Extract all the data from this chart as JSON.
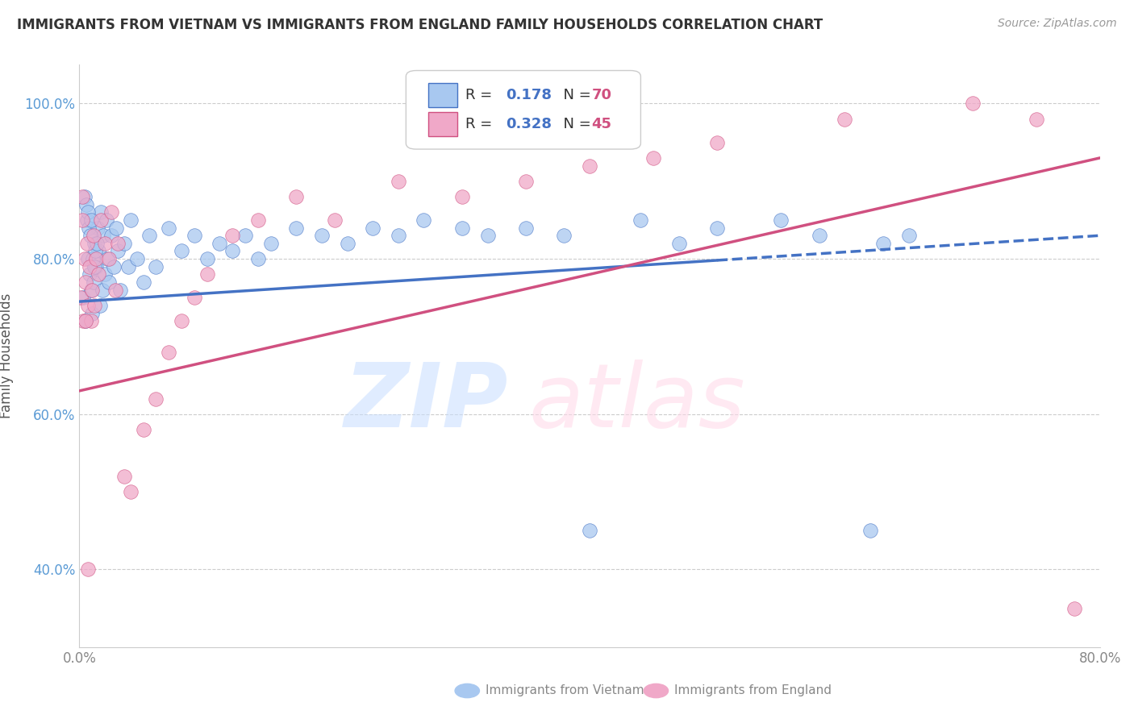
{
  "title": "IMMIGRANTS FROM VIETNAM VS IMMIGRANTS FROM ENGLAND FAMILY HOUSEHOLDS CORRELATION CHART",
  "source": "Source: ZipAtlas.com",
  "ylabel": "Family Households",
  "xlim": [
    0.0,
    80.0
  ],
  "ylim": [
    30.0,
    105.0
  ],
  "yticks": [
    40.0,
    60.0,
    80.0,
    100.0
  ],
  "ytick_labels": [
    "40.0%",
    "60.0%",
    "80.0%",
    "100.0%"
  ],
  "xticks": [
    0.0,
    10.0,
    20.0,
    30.0,
    40.0,
    50.0,
    60.0,
    70.0,
    80.0
  ],
  "xtick_labels": [
    "0.0%",
    "",
    "",
    "",
    "",
    "",
    "",
    "",
    "80.0%"
  ],
  "color_vietnam": "#A8C8F0",
  "color_england": "#F0A8C8",
  "color_line_vietnam": "#4472C4",
  "color_line_england": "#D05080",
  "color_r_value": "#4472C4",
  "color_n_value": "#D05080",
  "vn_line_x0": 0.0,
  "vn_line_y0": 74.5,
  "vn_line_x1": 80.0,
  "vn_line_y1": 83.0,
  "vn_solid_end": 50.0,
  "en_line_x0": 0.0,
  "en_line_y0": 63.0,
  "en_line_x1": 80.0,
  "en_line_y1": 93.0,
  "vietnam_x": [
    0.3,
    0.5,
    0.6,
    0.7,
    0.8,
    0.9,
    1.0,
    1.1,
    1.2,
    1.3,
    1.4,
    1.5,
    1.6,
    1.7,
    1.8,
    1.9,
    2.0,
    2.1,
    2.2,
    2.3,
    2.5,
    2.7,
    2.9,
    3.0,
    3.2,
    3.5,
    3.8,
    4.0,
    4.5,
    5.0,
    5.5,
    6.0,
    7.0,
    8.0,
    9.0,
    10.0,
    11.0,
    12.0,
    13.0,
    14.0,
    15.0,
    17.0,
    19.0,
    21.0,
    23.0,
    25.0,
    27.0,
    30.0,
    32.0,
    35.0,
    38.0,
    40.0,
    44.0,
    47.0,
    50.0,
    55.0,
    58.0,
    62.0,
    63.0,
    65.0,
    0.4,
    0.55,
    0.65,
    0.75,
    0.85,
    0.95,
    1.05,
    1.15,
    1.25,
    1.35
  ],
  "vietnam_y": [
    75.0,
    72.0,
    85.0,
    80.0,
    78.0,
    76.0,
    73.0,
    77.0,
    82.0,
    79.0,
    84.0,
    81.0,
    74.0,
    86.0,
    76.0,
    83.0,
    78.0,
    85.0,
    80.0,
    77.0,
    83.0,
    79.0,
    84.0,
    81.0,
    76.0,
    82.0,
    79.0,
    85.0,
    80.0,
    77.0,
    83.0,
    79.0,
    84.0,
    81.0,
    83.0,
    80.0,
    82.0,
    81.0,
    83.0,
    80.0,
    82.0,
    84.0,
    83.0,
    82.0,
    84.0,
    83.0,
    85.0,
    84.0,
    83.0,
    84.0,
    83.0,
    45.0,
    85.0,
    82.0,
    84.0,
    85.0,
    83.0,
    45.0,
    82.0,
    83.0,
    88.0,
    87.0,
    86.0,
    84.0,
    83.0,
    85.0,
    80.0,
    79.0,
    81.0,
    82.0
  ],
  "england_x": [
    0.1,
    0.2,
    0.3,
    0.4,
    0.5,
    0.6,
    0.7,
    0.8,
    0.9,
    1.0,
    1.1,
    1.2,
    1.3,
    1.5,
    1.7,
    2.0,
    2.3,
    2.5,
    2.8,
    3.0,
    3.5,
    4.0,
    5.0,
    6.0,
    7.0,
    8.0,
    9.0,
    10.0,
    12.0,
    14.0,
    17.0,
    20.0,
    25.0,
    30.0,
    35.0,
    40.0,
    45.0,
    50.0,
    60.0,
    70.0,
    75.0,
    78.0,
    0.25,
    0.45,
    0.65
  ],
  "england_y": [
    75.0,
    85.0,
    72.0,
    80.0,
    77.0,
    82.0,
    74.0,
    79.0,
    72.0,
    76.0,
    83.0,
    74.0,
    80.0,
    78.0,
    85.0,
    82.0,
    80.0,
    86.0,
    76.0,
    82.0,
    52.0,
    50.0,
    58.0,
    62.0,
    68.0,
    72.0,
    75.0,
    78.0,
    83.0,
    85.0,
    88.0,
    85.0,
    90.0,
    88.0,
    90.0,
    92.0,
    93.0,
    95.0,
    98.0,
    100.0,
    98.0,
    35.0,
    88.0,
    72.0,
    40.0
  ]
}
